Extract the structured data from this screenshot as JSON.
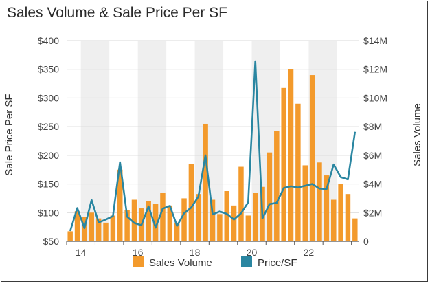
{
  "chart_data": {
    "type": "bar+line",
    "title": "Sales Volume & Sale Price Per SF",
    "y_left_label": "Sale Price Per SF",
    "y_right_label": "Sales Volume",
    "y_left_ticks": [
      "$50",
      "$100",
      "$150",
      "$200",
      "$250",
      "$300",
      "$350",
      "$400"
    ],
    "y_left_range": [
      50,
      400
    ],
    "y_right_ticks": [
      "0",
      "$2M",
      "$4M",
      "$6M",
      "$8M",
      "$10M",
      "$12M",
      "$14M"
    ],
    "y_right_range": [
      0,
      14
    ],
    "x_ticks": [
      "14",
      "16",
      "18",
      "20",
      "22"
    ],
    "legend": [
      "Sales Volume",
      "Price/SF"
    ],
    "colors": {
      "bars": "#f39a2c",
      "line": "#2a86a1",
      "band": "#efefef",
      "grid": "#d9d9d9"
    },
    "grid": true,
    "legend_position": "bottom",
    "series": [
      {
        "name": "Sales Volume",
        "unit": "$M",
        "values": [
          0.7,
          2.1,
          1.7,
          2.0,
          1.6,
          1.3,
          1.8,
          5.0,
          2.2,
          2.9,
          2.3,
          2.8,
          2.6,
          3.4,
          2.5,
          1.3,
          3.0,
          5.4,
          3.3,
          8.2,
          2.9,
          1.9,
          3.5,
          2.5,
          5.2,
          1.8,
          3.4,
          3.8,
          6.2,
          7.7,
          10.7,
          12.0,
          9.6,
          5.3,
          11.6,
          5.5,
          4.6,
          2.9,
          4.0,
          3.3,
          1.6
        ]
      },
      {
        "name": "Price/SF",
        "unit": "$/SF",
        "values": [
          68,
          108,
          73,
          122,
          83,
          88,
          94,
          188,
          93,
          82,
          78,
          111,
          74,
          107,
          112,
          77,
          99,
          109,
          128,
          200,
          97,
          102,
          98,
          88,
          99,
          118,
          364,
          90,
          115,
          117,
          143,
          146,
          144,
          147,
          150,
          142,
          141,
          184,
          162,
          158,
          241
        ]
      }
    ]
  }
}
